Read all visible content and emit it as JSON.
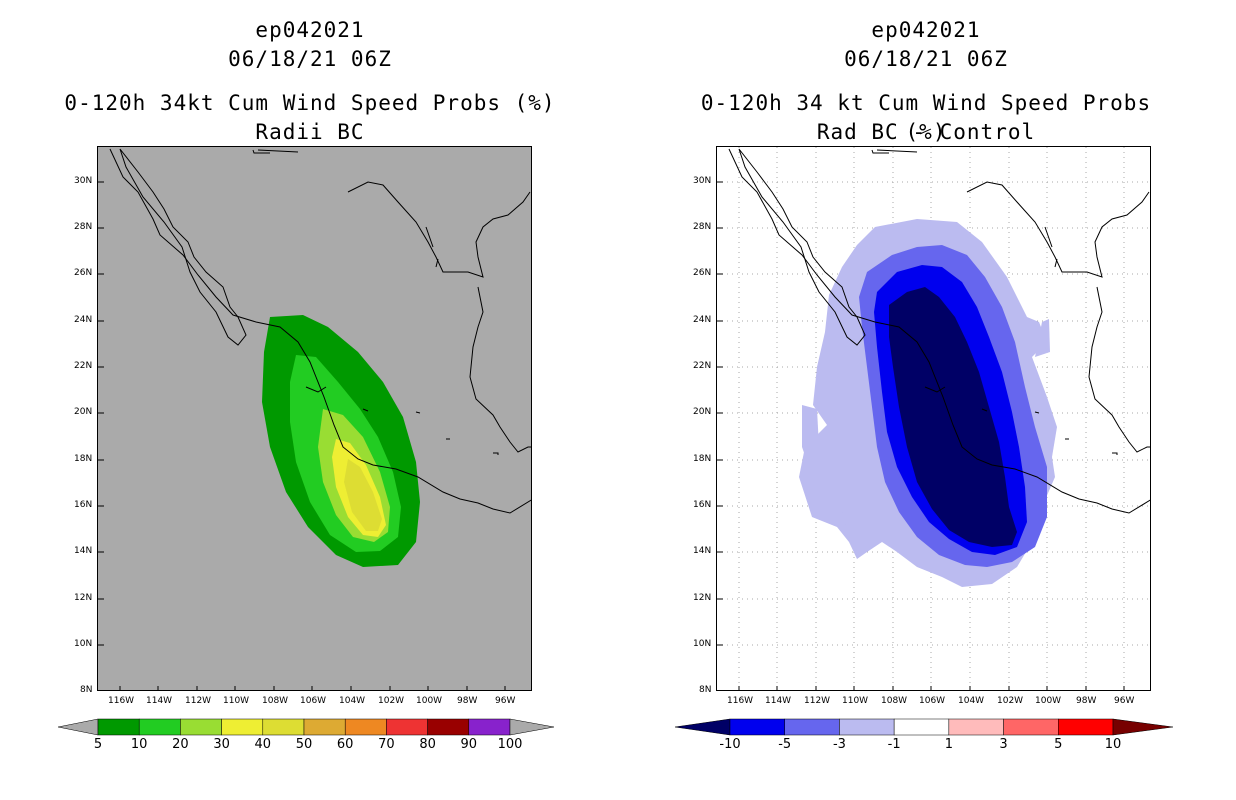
{
  "left": {
    "storm_id": "ep042021",
    "datetime": "06/18/21 06Z",
    "product": "0-120h 34kt Cum Wind Speed Probs (%)",
    "subtitle": "Radii BC",
    "background_color": "#aaaaaa",
    "colorbar": {
      "labels": [
        "5",
        "10",
        "20",
        "30",
        "40",
        "50",
        "60",
        "70",
        "80",
        "90",
        "100"
      ],
      "colors": [
        "#009900",
        "#22cc22",
        "#99dd33",
        "#eeee33",
        "#dddd33",
        "#ddaa33",
        "#ee8822",
        "#ee3333",
        "#990000",
        "#8822cc"
      ]
    }
  },
  "right": {
    "storm_id": "ep042021",
    "datetime": "06/18/21 06Z",
    "product": "0-120h 34 kt Cum Wind Speed Probs (%)",
    "subtitle": "Rad BC - Control",
    "background_color": "#ffffff",
    "colorbar": {
      "labels": [
        "-10",
        "-5",
        "-3",
        "-1",
        "1",
        "3",
        "5",
        "10"
      ],
      "colors": [
        "#000066",
        "#0000ee",
        "#6666ee",
        "#bbbbf0",
        "#ffffff",
        "#ffbbbb",
        "#ff6666",
        "#ff0000",
        "#770000"
      ]
    }
  },
  "axes": {
    "lat_labels": [
      "30N",
      "28N",
      "26N",
      "24N",
      "22N",
      "20N",
      "18N",
      "16N",
      "14N",
      "12N",
      "10N",
      "8N"
    ],
    "lon_labels": [
      "116W",
      "114W",
      "112W",
      "110W",
      "108W",
      "106W",
      "104W",
      "102W",
      "100W",
      "98W",
      "96W"
    ]
  }
}
